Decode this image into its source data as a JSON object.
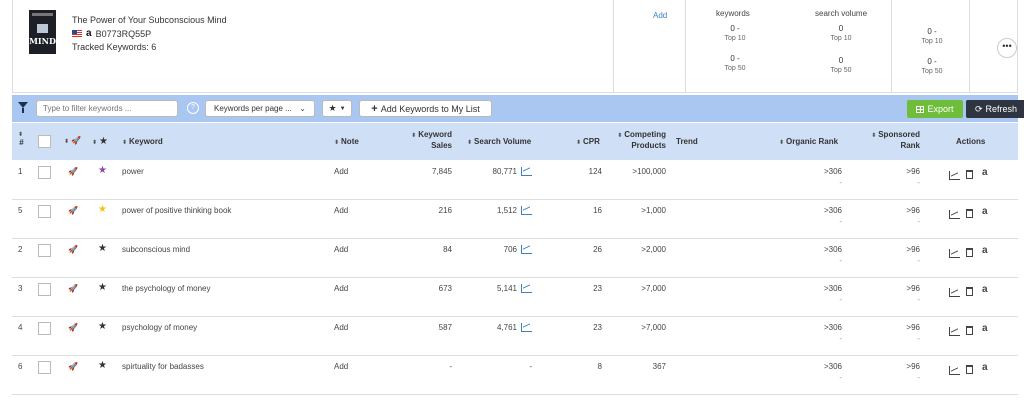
{
  "product": {
    "title": "The Power of Your Subconscious Mind",
    "asin": "B0773RQ55P",
    "tracked": "Tracked Keywords: 6",
    "cover_text": "MIND"
  },
  "header_stats": {
    "add_label": "Add",
    "keywords_label": "keywords",
    "search_volume_label": "search volume",
    "kw_top10": "0",
    "kw_top10_dash": "-",
    "kw_top10_sub": "Top 10",
    "kw_top50": "0",
    "kw_top50_dash": "-",
    "kw_top50_sub": "Top 50",
    "sv_top10": "0",
    "sv_top10_sub": "Top 10",
    "sv_top50": "0",
    "sv_top50_sub": "Top 50",
    "r_top10": "0",
    "r_top10_dash": "-",
    "r_top10_sub": "Top 10",
    "r_top50": "0",
    "r_top50_dash": "-",
    "r_top50_sub": "Top 50",
    "more": "•••"
  },
  "toolbar": {
    "filter_placeholder": "Type to filter keywords ...",
    "help": "?",
    "kpp_label": "Keywords per page ...",
    "add_keywords": "Add Keywords to My List",
    "export": "Export",
    "refresh": "Refresh"
  },
  "columns": {
    "num_hash": "#",
    "keyword": "Keyword",
    "note": "Note",
    "keyword_sales_1": "Keyword",
    "keyword_sales_2": "Sales",
    "search_volume": "Search Volume",
    "cpr": "CPR",
    "competing_1": "Competing",
    "competing_2": "Products",
    "trend": "Trend",
    "organic_rank": "Organic Rank",
    "sponsored_1": "Sponsored",
    "sponsored_2": "Rank",
    "actions": "Actions"
  },
  "rows": [
    {
      "num": "1",
      "keyword": "power",
      "note": "Add",
      "sales": "7,845",
      "volume": "80,771",
      "cpr": "124",
      "competing": ">100,000",
      "organic": ">306",
      "organic_dash": "-",
      "sponsored": ">96",
      "sponsored_dash": "-",
      "star_color": "#8e44ad"
    },
    {
      "num": "5",
      "keyword": "power of positive thinking book",
      "note": "Add",
      "sales": "216",
      "volume": "1,512",
      "cpr": "16",
      "competing": ">1,000",
      "organic": ">306",
      "organic_dash": "-",
      "sponsored": ">96",
      "sponsored_dash": "-",
      "star_color": "#f1c40f"
    },
    {
      "num": "2",
      "keyword": "subconscious mind",
      "note": "Add",
      "sales": "84",
      "volume": "706",
      "cpr": "26",
      "competing": ">2,000",
      "organic": ">306",
      "organic_dash": "-",
      "sponsored": ">96",
      "sponsored_dash": "-",
      "star_color": "#333333"
    },
    {
      "num": "3",
      "keyword": "the psychology of money",
      "note": "Add",
      "sales": "673",
      "volume": "5,141",
      "cpr": "23",
      "competing": ">7,000",
      "organic": ">306",
      "organic_dash": "-",
      "sponsored": ">96",
      "sponsored_dash": "-",
      "star_color": "#333333"
    },
    {
      "num": "4",
      "keyword": "psychology of money",
      "note": "Add",
      "sales": "587",
      "volume": "4,761",
      "cpr": "23",
      "competing": ">7,000",
      "organic": ">306",
      "organic_dash": "-",
      "sponsored": ">96",
      "sponsored_dash": "-",
      "star_color": "#333333"
    },
    {
      "num": "6",
      "keyword": "spirtuality for badasses",
      "note": "Add",
      "sales": "-",
      "volume": "-",
      "cpr": "8",
      "competing": "367",
      "organic": ">306",
      "organic_dash": "-",
      "sponsored": ">96",
      "sponsored_dash": "-",
      "star_color": "#333333"
    }
  ],
  "icons": {
    "star": "★",
    "rocket": "🚀",
    "refresh": "⟳",
    "amazon": "a",
    "caret": "▼",
    "chevron": "⌄",
    "sort": "⬍"
  },
  "colors": {
    "toolbar_bg": "#a9c7f0",
    "header_bg": "#cfe0f6",
    "export_green": "#6fbe3b",
    "refresh_dark": "#2e3440",
    "link_blue": "#3b7fc4"
  }
}
